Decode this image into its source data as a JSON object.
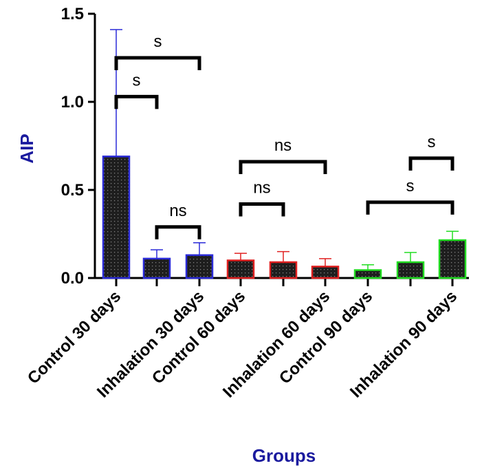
{
  "chart_data": {
    "type": "bar",
    "title": "",
    "xlabel": "Groups",
    "ylabel": "AIP",
    "ylim": [
      0,
      1.5
    ],
    "yticks": [
      "0.0",
      "0.5",
      "1.0",
      "1.5"
    ],
    "categories": [
      "Control 30 days",
      "",
      "Inhalation 30 days",
      "Control 60 days",
      "",
      "Inhalation 60 days",
      "Control 90 days",
      "",
      "Inhalation 90 days"
    ],
    "values": [
      0.69,
      0.11,
      0.13,
      0.1,
      0.09,
      0.065,
      0.045,
      0.09,
      0.215
    ],
    "errors": [
      0.72,
      0.05,
      0.07,
      0.04,
      0.06,
      0.045,
      0.03,
      0.055,
      0.05
    ],
    "colors": [
      "#2a2ad8",
      "#2a2ad8",
      "#2a2ad8",
      "#e02020",
      "#e02020",
      "#e02020",
      "#22dd22",
      "#22dd22",
      "#22dd22"
    ],
    "fill_color": "#1e1e1e",
    "grid": false,
    "significance": [
      {
        "from": 0,
        "to": 1,
        "label": "s",
        "y": 1.03
      },
      {
        "from": 0,
        "to": 2,
        "label": "s",
        "y": 1.25
      },
      {
        "from": 1,
        "to": 2,
        "label": "ns",
        "y": 0.29
      },
      {
        "from": 3,
        "to": 4,
        "label": "ns",
        "y": 0.42
      },
      {
        "from": 3,
        "to": 5,
        "label": "ns",
        "y": 0.66
      },
      {
        "from": 6,
        "to": 8,
        "label": "s",
        "y": 0.43
      },
      {
        "from": 7,
        "to": 8,
        "label": "s",
        "y": 0.68
      }
    ]
  }
}
